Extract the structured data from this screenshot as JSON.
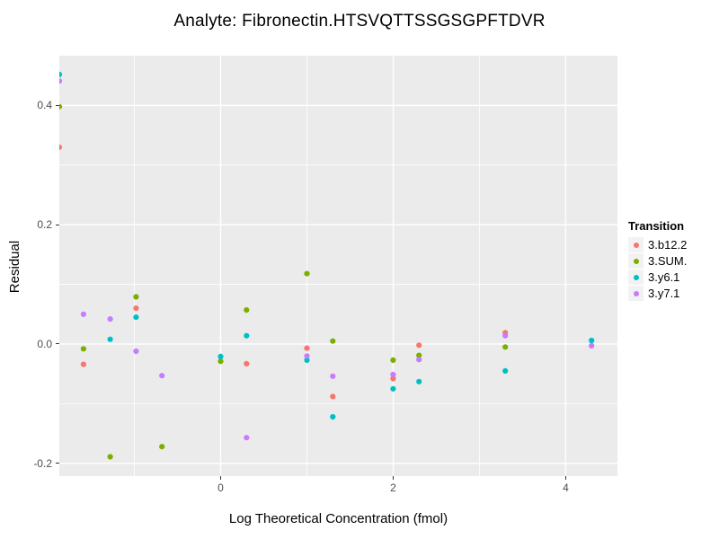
{
  "colors": {
    "page_background": "#FFFFFF",
    "panel_background": "#EBEBEB",
    "grid": "#FFFFFF",
    "tick_label": "#4D4D4D",
    "tick_mark": "#333333",
    "axis_title": "#000000",
    "legend_key_fill": "#F2F2F2"
  },
  "chart_data": {
    "type": "scatter",
    "title": "Analyte: Fibronectin.HTSVQTTSSGSGPFTDVR",
    "xlabel": "Log Theoretical Concentration (fmol)",
    "ylabel": "Residual",
    "xlim": [
      -1.87,
      4.6
    ],
    "ylim": [
      -0.2214,
      0.4834
    ],
    "grid": true,
    "x_ticks": [
      {
        "value": 0,
        "label": "0"
      },
      {
        "value": 2,
        "label": "2"
      },
      {
        "value": 4,
        "label": "4"
      }
    ],
    "y_ticks": [
      {
        "value": 0.4,
        "label": "0.4"
      },
      {
        "value": 0.2,
        "label": "0.2"
      },
      {
        "value": 0.0,
        "label": "0.0"
      },
      {
        "value": -0.2,
        "label": "-0.2"
      }
    ],
    "x_minor": [
      -1,
      1,
      3
    ],
    "y_minor": [
      0.3,
      0.1,
      -0.1
    ],
    "legend": {
      "title": "Transition",
      "position": "right",
      "items": [
        {
          "name": "3.b12.2",
          "color": "#F8766D"
        },
        {
          "name": "3.SUM.",
          "color": "#7CAE00"
        },
        {
          "name": "3.y6.1",
          "color": "#00BFC4"
        },
        {
          "name": "3.y7.1",
          "color": "#C77CFF"
        }
      ]
    },
    "series": [
      {
        "name": "3.b12.2",
        "color": "#F8766D",
        "points": [
          [
            -1.87,
            0.33
          ],
          [
            -1.59,
            -0.034
          ],
          [
            -0.98,
            0.06
          ],
          [
            0.3,
            -0.033
          ],
          [
            1.0,
            -0.007
          ],
          [
            1.3,
            -0.088
          ],
          [
            2.0,
            -0.058
          ],
          [
            2.3,
            -0.002
          ],
          [
            3.3,
            0.019
          ]
        ]
      },
      {
        "name": "3.SUM.",
        "color": "#7CAE00",
        "points": [
          [
            -1.87,
            0.398
          ],
          [
            -1.59,
            -0.008
          ],
          [
            -1.28,
            -0.189
          ],
          [
            -0.98,
            0.079
          ],
          [
            -0.68,
            -0.172
          ],
          [
            0.0,
            -0.029
          ],
          [
            0.3,
            0.057
          ],
          [
            1.0,
            0.118
          ],
          [
            1.3,
            0.005
          ],
          [
            2.0,
            -0.027
          ],
          [
            2.3,
            -0.019
          ],
          [
            3.3,
            -0.005
          ]
        ]
      },
      {
        "name": "3.y6.1",
        "color": "#00BFC4",
        "points": [
          [
            -1.87,
            0.452
          ],
          [
            -1.28,
            0.008
          ],
          [
            -0.98,
            0.045
          ],
          [
            0.0,
            -0.021
          ],
          [
            0.3,
            0.014
          ],
          [
            1.0,
            -0.027
          ],
          [
            1.3,
            -0.122
          ],
          [
            2.0,
            -0.075
          ],
          [
            2.3,
            -0.063
          ],
          [
            3.3,
            -0.045
          ],
          [
            4.3,
            0.006
          ]
        ]
      },
      {
        "name": "3.y7.1",
        "color": "#C77CFF",
        "points": [
          [
            -1.87,
            0.441
          ],
          [
            -1.59,
            0.05
          ],
          [
            -1.28,
            0.042
          ],
          [
            -0.98,
            -0.012
          ],
          [
            -0.68,
            -0.053
          ],
          [
            0.3,
            -0.157
          ],
          [
            1.0,
            -0.02
          ],
          [
            1.3,
            -0.054
          ],
          [
            2.0,
            -0.051
          ],
          [
            2.3,
            -0.026
          ],
          [
            3.3,
            0.014
          ],
          [
            4.3,
            -0.003
          ]
        ]
      }
    ]
  }
}
